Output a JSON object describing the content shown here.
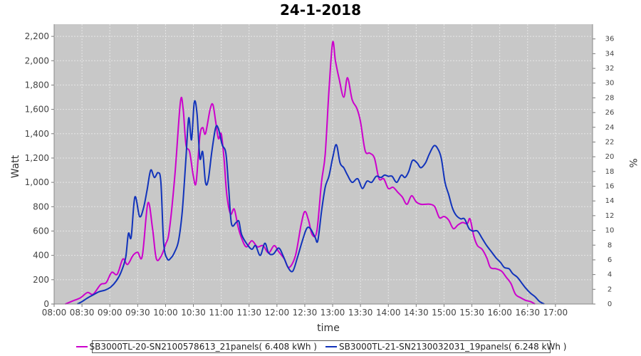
{
  "chart_data": {
    "type": "line",
    "title": "24-1-2018",
    "xlabel": "time",
    "ylabel": "Watt",
    "y2label": "%",
    "xlim": [
      "08:00",
      "17:40"
    ],
    "ylim": [
      0,
      2300
    ],
    "y2lim": [
      0,
      38
    ],
    "x_ticks": [
      "08:00",
      "08:30",
      "09:00",
      "09:30",
      "10:00",
      "10:30",
      "11:00",
      "11:30",
      "12:00",
      "12:30",
      "13:00",
      "13:30",
      "14:00",
      "14:30",
      "15:00",
      "15:30",
      "16:00",
      "16:30",
      "17:00"
    ],
    "y_ticks": [
      "0",
      "200",
      "400",
      "600",
      "800",
      "1,000",
      "1,200",
      "1,400",
      "1,600",
      "1,800",
      "2,000",
      "2,200"
    ],
    "y2_ticks": [
      "0",
      "2",
      "4",
      "6",
      "8",
      "10",
      "12",
      "14",
      "16",
      "18",
      "20",
      "22",
      "24",
      "26",
      "28",
      "30",
      "32",
      "34",
      "36"
    ],
    "grid": true,
    "legend_position": "bottom",
    "colors": {
      "plot_bg": "#c8c8c8",
      "grid": "#e6e6e6"
    },
    "series": [
      {
        "name": "SB3000TL-20-SN2100578613_21panels( 6.408 kWh )",
        "color": "#cc00cc",
        "points": [
          [
            "08:12",
            0
          ],
          [
            "08:20",
            25
          ],
          [
            "08:28",
            50
          ],
          [
            "08:36",
            95
          ],
          [
            "08:42",
            80
          ],
          [
            "08:50",
            160
          ],
          [
            "08:56",
            175
          ],
          [
            "09:02",
            260
          ],
          [
            "09:08",
            245
          ],
          [
            "09:14",
            370
          ],
          [
            "09:19",
            325
          ],
          [
            "09:25",
            400
          ],
          [
            "09:30",
            425
          ],
          [
            "09:35",
            395
          ],
          [
            "09:41",
            830
          ],
          [
            "09:46",
            620
          ],
          [
            "09:50",
            375
          ],
          [
            "09:55",
            390
          ],
          [
            "10:00",
            490
          ],
          [
            "10:04",
            600
          ],
          [
            "10:10",
            1050
          ],
          [
            "10:16",
            1660
          ],
          [
            "10:19",
            1600
          ],
          [
            "10:22",
            1310
          ],
          [
            "10:26",
            1250
          ],
          [
            "10:30",
            1050
          ],
          [
            "10:33",
            1000
          ],
          [
            "10:37",
            1380
          ],
          [
            "10:40",
            1450
          ],
          [
            "10:43",
            1400
          ],
          [
            "10:48",
            1600
          ],
          [
            "10:51",
            1640
          ],
          [
            "10:54",
            1500
          ],
          [
            "10:57",
            1360
          ],
          [
            "11:00",
            1400
          ],
          [
            "11:03",
            1200
          ],
          [
            "11:06",
            900
          ],
          [
            "11:10",
            740
          ],
          [
            "11:14",
            780
          ],
          [
            "11:18",
            640
          ],
          [
            "11:22",
            540
          ],
          [
            "11:27",
            470
          ],
          [
            "11:33",
            520
          ],
          [
            "11:39",
            470
          ],
          [
            "11:45",
            480
          ],
          [
            "11:51",
            420
          ],
          [
            "11:57",
            480
          ],
          [
            "12:02",
            430
          ],
          [
            "12:08",
            370
          ],
          [
            "12:13",
            300
          ],
          [
            "12:20",
            400
          ],
          [
            "12:26",
            650
          ],
          [
            "12:30",
            760
          ],
          [
            "12:34",
            690
          ],
          [
            "12:38",
            570
          ],
          [
            "12:43",
            600
          ],
          [
            "12:48",
            1000
          ],
          [
            "12:52",
            1230
          ],
          [
            "12:56",
            1750
          ],
          [
            "13:00",
            2150
          ],
          [
            "13:03",
            2000
          ],
          [
            "13:07",
            1850
          ],
          [
            "13:12",
            1700
          ],
          [
            "13:16",
            1860
          ],
          [
            "13:21",
            1680
          ],
          [
            "13:26",
            1610
          ],
          [
            "13:30",
            1500
          ],
          [
            "13:35",
            1260
          ],
          [
            "13:40",
            1240
          ],
          [
            "13:45",
            1200
          ],
          [
            "13:50",
            1030
          ],
          [
            "13:55",
            1030
          ],
          [
            "14:00",
            950
          ],
          [
            "14:05",
            960
          ],
          [
            "14:10",
            920
          ],
          [
            "14:15",
            880
          ],
          [
            "14:20",
            820
          ],
          [
            "14:25",
            890
          ],
          [
            "14:30",
            840
          ],
          [
            "14:35",
            820
          ],
          [
            "14:40",
            820
          ],
          [
            "14:45",
            820
          ],
          [
            "14:50",
            800
          ],
          [
            "14:55",
            710
          ],
          [
            "15:00",
            720
          ],
          [
            "15:05",
            690
          ],
          [
            "15:10",
            620
          ],
          [
            "15:15",
            650
          ],
          [
            "15:20",
            670
          ],
          [
            "15:25",
            660
          ],
          [
            "15:28",
            700
          ],
          [
            "15:32",
            560
          ],
          [
            "15:36",
            480
          ],
          [
            "15:41",
            450
          ],
          [
            "15:46",
            380
          ],
          [
            "15:50",
            300
          ],
          [
            "15:56",
            290
          ],
          [
            "16:02",
            270
          ],
          [
            "16:07",
            220
          ],
          [
            "16:12",
            170
          ],
          [
            "16:17",
            80
          ],
          [
            "16:23",
            50
          ],
          [
            "16:28",
            30
          ],
          [
            "16:33",
            20
          ],
          [
            "16:38",
            0
          ]
        ]
      },
      {
        "name": "SB3000TL-21-SN2130032031_19panels( 6.248 kWh )",
        "color": "#1133bb",
        "points": [
          [
            "08:25",
            0
          ],
          [
            "08:30",
            20
          ],
          [
            "08:36",
            50
          ],
          [
            "08:42",
            75
          ],
          [
            "08:48",
            100
          ],
          [
            "08:55",
            115
          ],
          [
            "09:01",
            140
          ],
          [
            "09:07",
            190
          ],
          [
            "09:12",
            260
          ],
          [
            "09:17",
            380
          ],
          [
            "09:20",
            580
          ],
          [
            "09:23",
            550
          ],
          [
            "09:27",
            880
          ],
          [
            "09:32",
            720
          ],
          [
            "09:36",
            780
          ],
          [
            "09:40",
            930
          ],
          [
            "09:44",
            1100
          ],
          [
            "09:48",
            1040
          ],
          [
            "09:52",
            1080
          ],
          [
            "09:55",
            1000
          ],
          [
            "09:58",
            500
          ],
          [
            "10:02",
            370
          ],
          [
            "10:06",
            380
          ],
          [
            "10:10",
            430
          ],
          [
            "10:14",
            520
          ],
          [
            "10:18",
            760
          ],
          [
            "10:22",
            1200
          ],
          [
            "10:25",
            1530
          ],
          [
            "10:28",
            1350
          ],
          [
            "10:31",
            1660
          ],
          [
            "10:34",
            1560
          ],
          [
            "10:37",
            1200
          ],
          [
            "10:40",
            1250
          ],
          [
            "10:43",
            1000
          ],
          [
            "10:46",
            1020
          ],
          [
            "10:50",
            1260
          ],
          [
            "10:54",
            1450
          ],
          [
            "10:57",
            1440
          ],
          [
            "11:01",
            1310
          ],
          [
            "11:05",
            1240
          ],
          [
            "11:08",
            960
          ],
          [
            "11:11",
            660
          ],
          [
            "11:16",
            670
          ],
          [
            "11:19",
            680
          ],
          [
            "11:22",
            570
          ],
          [
            "11:28",
            490
          ],
          [
            "11:33",
            450
          ],
          [
            "11:37",
            480
          ],
          [
            "11:42",
            400
          ],
          [
            "11:47",
            500
          ],
          [
            "11:51",
            420
          ],
          [
            "11:56",
            410
          ],
          [
            "12:02",
            460
          ],
          [
            "12:07",
            390
          ],
          [
            "12:12",
            300
          ],
          [
            "12:17",
            270
          ],
          [
            "12:22",
            380
          ],
          [
            "12:27",
            510
          ],
          [
            "12:32",
            620
          ],
          [
            "12:36",
            620
          ],
          [
            "12:41",
            550
          ],
          [
            "12:44",
            520
          ],
          [
            "12:48",
            760
          ],
          [
            "12:52",
            960
          ],
          [
            "12:56",
            1050
          ],
          [
            "13:00",
            1200
          ],
          [
            "13:04",
            1310
          ],
          [
            "13:08",
            1160
          ],
          [
            "13:12",
            1120
          ],
          [
            "13:16",
            1060
          ],
          [
            "13:21",
            1000
          ],
          [
            "13:27",
            1030
          ],
          [
            "13:32",
            950
          ],
          [
            "13:37",
            1010
          ],
          [
            "13:42",
            1000
          ],
          [
            "13:47",
            1050
          ],
          [
            "13:52",
            1040
          ],
          [
            "13:56",
            1060
          ],
          [
            "14:00",
            1050
          ],
          [
            "14:04",
            1050
          ],
          [
            "14:09",
            1000
          ],
          [
            "14:14",
            1060
          ],
          [
            "14:18",
            1040
          ],
          [
            "14:22",
            1090
          ],
          [
            "14:26",
            1180
          ],
          [
            "14:31",
            1160
          ],
          [
            "14:35",
            1120
          ],
          [
            "14:40",
            1160
          ],
          [
            "14:44",
            1230
          ],
          [
            "14:49",
            1300
          ],
          [
            "14:53",
            1280
          ],
          [
            "14:57",
            1200
          ],
          [
            "15:01",
            1000
          ],
          [
            "15:05",
            900
          ],
          [
            "15:09",
            790
          ],
          [
            "15:13",
            730
          ],
          [
            "15:18",
            700
          ],
          [
            "15:22",
            700
          ],
          [
            "15:27",
            620
          ],
          [
            "15:31",
            600
          ],
          [
            "15:36",
            600
          ],
          [
            "15:41",
            540
          ],
          [
            "15:46",
            480
          ],
          [
            "15:51",
            430
          ],
          [
            "15:56",
            380
          ],
          [
            "16:01",
            340
          ],
          [
            "16:05",
            300
          ],
          [
            "16:10",
            290
          ],
          [
            "16:14",
            250
          ],
          [
            "16:19",
            220
          ],
          [
            "16:24",
            170
          ],
          [
            "16:28",
            130
          ],
          [
            "16:33",
            90
          ],
          [
            "16:38",
            60
          ],
          [
            "16:43",
            20
          ],
          [
            "16:48",
            0
          ]
        ]
      }
    ]
  }
}
